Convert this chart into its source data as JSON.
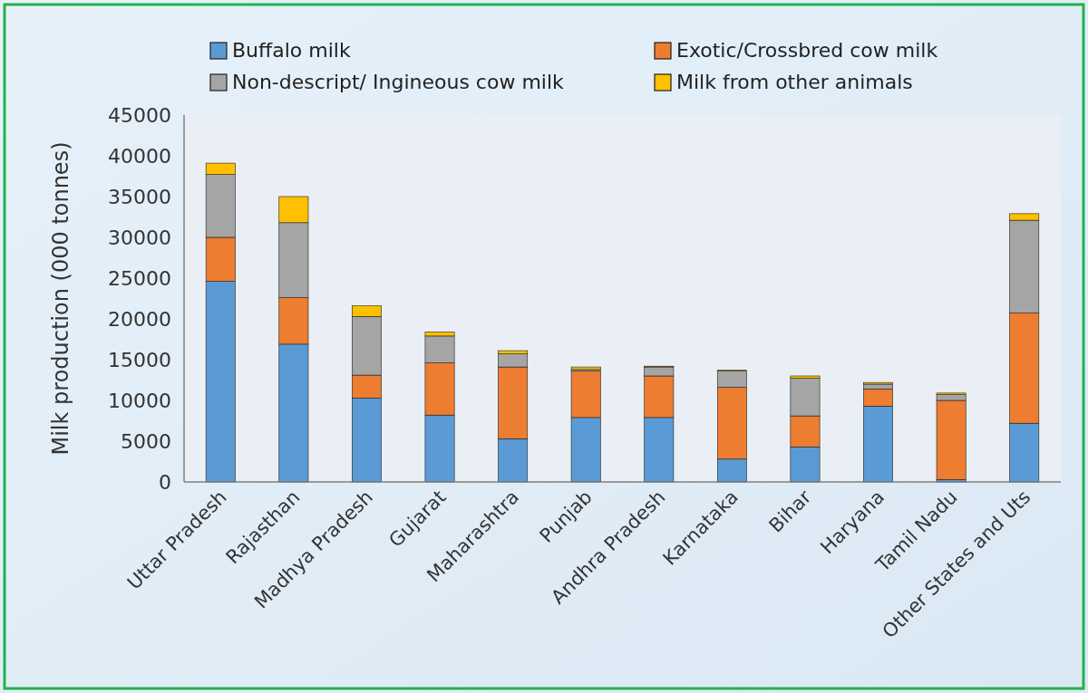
{
  "chart_data": {
    "type": "bar",
    "stacked": true,
    "ylabel": "Milk production (000 tonnes)",
    "categories": [
      "Uttar Pradesh",
      "Rajasthan",
      "Madhya Pradesh",
      "Gujarat",
      "Maharashtra",
      "Punjab",
      "Andhra Pradesh",
      "Karnataka",
      "Bihar",
      "Haryana",
      "Tamil Nadu",
      "Other States and Uts"
    ],
    "series": [
      {
        "name": "Buffalo milk",
        "color": "#5b9bd5",
        "values": [
          24600,
          16900,
          10300,
          8200,
          5300,
          7900,
          7900,
          2800,
          4300,
          9300,
          300,
          7200
        ]
      },
      {
        "name": "Exotic/Crossbred cow milk",
        "color": "#ed7d31",
        "values": [
          5400,
          5700,
          2800,
          6400,
          8800,
          5700,
          5100,
          8800,
          3800,
          2100,
          9700,
          13500
        ]
      },
      {
        "name": "Non-descript/ Ingineous cow milk",
        "color": "#a5a5a5",
        "values": [
          7700,
          9200,
          7200,
          3300,
          1600,
          200,
          1100,
          2000,
          4600,
          600,
          700,
          11400
        ]
      },
      {
        "name": "Milk from other animals",
        "color": "#ffc000",
        "values": [
          1400,
          3200,
          1300,
          500,
          400,
          300,
          100,
          100,
          300,
          200,
          200,
          800
        ]
      }
    ],
    "ylim": [
      0,
      45000
    ],
    "yticks": [
      0,
      5000,
      10000,
      15000,
      20000,
      25000,
      30000,
      35000,
      40000,
      45000
    ],
    "legend": "top"
  }
}
